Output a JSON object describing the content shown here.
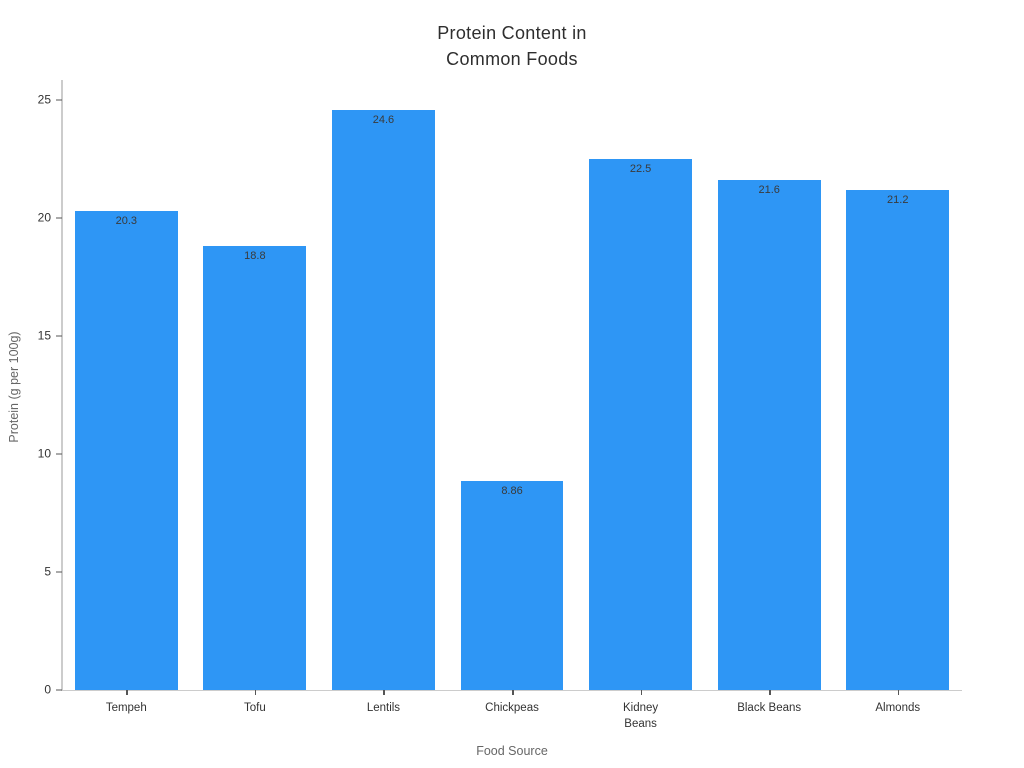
{
  "title": {
    "line1": "Protein Content in",
    "line2": "Common Foods"
  },
  "chart_data": {
    "type": "bar",
    "title": "Protein Content in Common Foods",
    "categories": [
      "Tempeh",
      "Tofu",
      "Lentils",
      "Chickpeas",
      "Kidney Beans",
      "Black Beans",
      "Almonds"
    ],
    "values": [
      20.3,
      18.8,
      24.6,
      8.86,
      22.5,
      21.6,
      21.2
    ],
    "value_labels": [
      "20.3",
      "18.8",
      "24.6",
      "8.86",
      "22.5",
      "21.6",
      "21.2"
    ],
    "xlabel": "Food Source",
    "ylabel": "Protein (g per 100g)",
    "yticks": [
      0,
      5,
      10,
      15,
      20,
      25
    ],
    "ytick_labels": [
      "0",
      "5",
      "10",
      "15",
      "20",
      "25"
    ],
    "ylim": [
      0,
      25.64
    ],
    "grid": false,
    "legend": false,
    "bar_color": "#2E96F5",
    "spine_color": "#cccccc",
    "tick_color": "#555555",
    "title_color": "#2e2e2e",
    "axis_label_color": "#666666",
    "tick_label_color": "#333333",
    "value_label_color": "#3a3a3a"
  }
}
